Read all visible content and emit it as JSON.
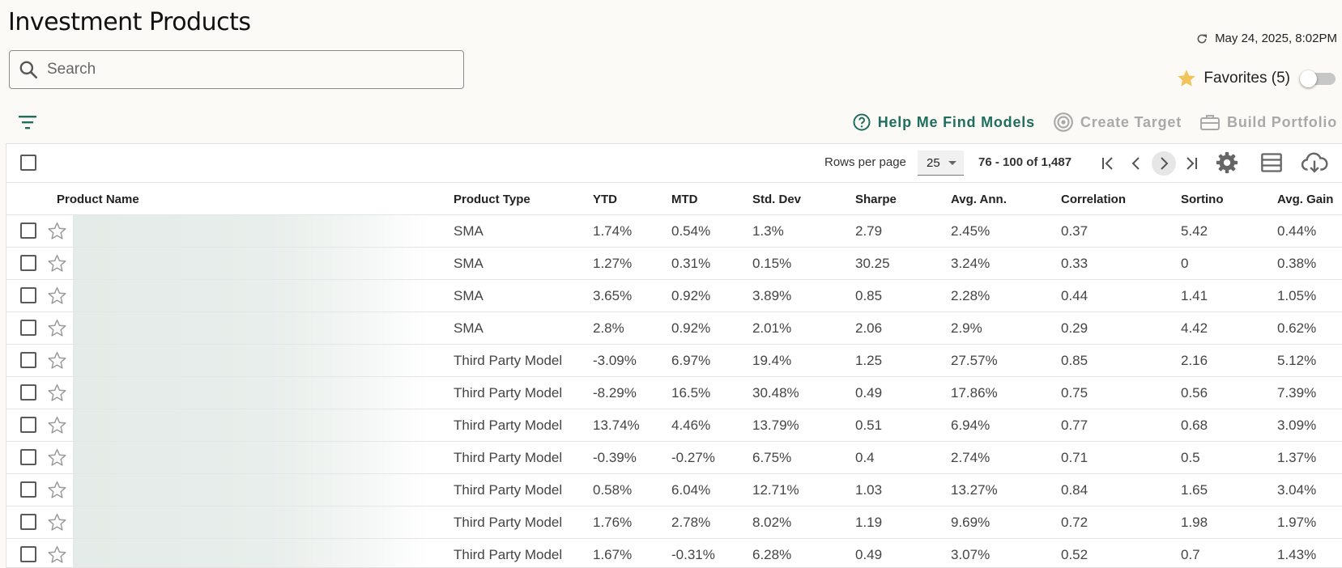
{
  "page": {
    "title": "Investment Products"
  },
  "search": {
    "placeholder": "Search",
    "value": ""
  },
  "status": {
    "timestamp": "May 24, 2025, 8:02PM"
  },
  "favorites": {
    "label": "Favorites (5)",
    "enabled": false
  },
  "actions": {
    "help": "Help Me Find Models",
    "target": "Create Target",
    "portfolio": "Build Portfolio"
  },
  "pagination": {
    "rows_label": "Rows per page",
    "rows_value": "25",
    "range": "76 - 100 of 1,487"
  },
  "columns": {
    "name": "Product Name",
    "type": "Product Type",
    "ytd": "YTD",
    "mtd": "MTD",
    "std": "Std. Dev",
    "sharpe": "Sharpe",
    "avg": "Avg. Ann.",
    "corr": "Correlation",
    "sortino": "Sortino",
    "gain": "Avg. Gain"
  },
  "rows": [
    {
      "type": "SMA",
      "ytd": "1.74%",
      "mtd": "0.54%",
      "std": "1.3%",
      "sharpe": "2.79",
      "avg": "2.45%",
      "corr": "0.37",
      "sortino": "5.42",
      "gain": "0.44%"
    },
    {
      "type": "SMA",
      "ytd": "1.27%",
      "mtd": "0.31%",
      "std": "0.15%",
      "sharpe": "30.25",
      "avg": "3.24%",
      "corr": "0.33",
      "sortino": "0",
      "gain": "0.38%"
    },
    {
      "type": "SMA",
      "ytd": "3.65%",
      "mtd": "0.92%",
      "std": "3.89%",
      "sharpe": "0.85",
      "avg": "2.28%",
      "corr": "0.44",
      "sortino": "1.41",
      "gain": "1.05%"
    },
    {
      "type": "SMA",
      "ytd": "2.8%",
      "mtd": "0.92%",
      "std": "2.01%",
      "sharpe": "2.06",
      "avg": "2.9%",
      "corr": "0.29",
      "sortino": "4.42",
      "gain": "0.62%"
    },
    {
      "type": "Third Party Model",
      "ytd": "-3.09%",
      "mtd": "6.97%",
      "std": "19.4%",
      "sharpe": "1.25",
      "avg": "27.57%",
      "corr": "0.85",
      "sortino": "2.16",
      "gain": "5.12%"
    },
    {
      "type": "Third Party Model",
      "ytd": "-8.29%",
      "mtd": "16.5%",
      "std": "30.48%",
      "sharpe": "0.49",
      "avg": "17.86%",
      "corr": "0.75",
      "sortino": "0.56",
      "gain": "7.39%"
    },
    {
      "type": "Third Party Model",
      "ytd": "13.74%",
      "mtd": "4.46%",
      "std": "13.79%",
      "sharpe": "0.51",
      "avg": "6.94%",
      "corr": "0.77",
      "sortino": "0.68",
      "gain": "3.09%"
    },
    {
      "type": "Third Party Model",
      "ytd": "-0.39%",
      "mtd": "-0.27%",
      "std": "6.75%",
      "sharpe": "0.4",
      "avg": "2.74%",
      "corr": "0.71",
      "sortino": "0.5",
      "gain": "1.37%"
    },
    {
      "type": "Third Party Model",
      "ytd": "0.58%",
      "mtd": "6.04%",
      "std": "12.71%",
      "sharpe": "1.03",
      "avg": "13.27%",
      "corr": "0.84",
      "sortino": "1.65",
      "gain": "3.04%"
    },
    {
      "type": "Third Party Model",
      "ytd": "1.76%",
      "mtd": "2.78%",
      "std": "8.02%",
      "sharpe": "1.19",
      "avg": "9.69%",
      "corr": "0.72",
      "sortino": "1.98",
      "gain": "1.97%"
    },
    {
      "type": "Third Party Model",
      "ytd": "1.67%",
      "mtd": "-0.31%",
      "std": "6.28%",
      "sharpe": "0.49",
      "avg": "3.07%",
      "corr": "0.52",
      "sortino": "0.7",
      "gain": "1.43%"
    }
  ],
  "icons": {
    "search": "search-icon",
    "refresh": "refresh-icon",
    "favorite": "star-icon",
    "filter": "filter-icon",
    "help": "help-circle-icon",
    "target": "target-icon",
    "portfolio": "briefcase-icon",
    "first": "first-page-icon",
    "prev": "chevron-left-icon",
    "next": "chevron-right-icon",
    "last": "last-page-icon",
    "settings": "gear-icon",
    "columns": "columns-icon",
    "download": "cloud-download-icon"
  },
  "colors": {
    "accent": "#1f6e5e",
    "favorite": "#f2c35a",
    "disabled": "#a9a9a9",
    "background": "#fbfaf6"
  }
}
